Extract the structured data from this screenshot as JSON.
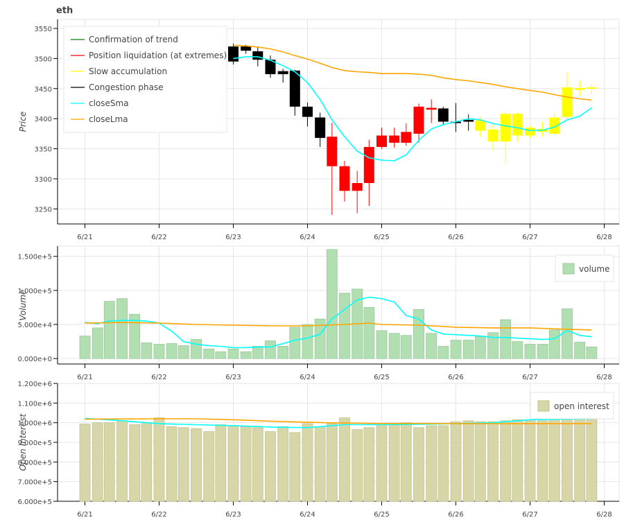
{
  "chart_data": [
    {
      "panel": "price",
      "type": "candlestick",
      "title": "eth",
      "ylabel": "Price",
      "ylim": [
        3225,
        3565
      ],
      "yticks": [
        3250,
        3300,
        3350,
        3400,
        3450,
        3500,
        3550
      ],
      "xlim": [
        -0.0,
        7.0
      ],
      "xticks": [
        0,
        1,
        2,
        3,
        4,
        5,
        6,
        7
      ],
      "xtick_labels": [
        "6/21",
        "6/22",
        "6/23",
        "6/24",
        "6/25",
        "6/26",
        "6/27",
        "6/28"
      ],
      "legend": {
        "position": "top-left",
        "entries": [
          {
            "label": "Confirmation of trend",
            "color": "#008000"
          },
          {
            "label": "Position liquidation (at extremes)",
            "color": "#ff0000"
          },
          {
            "label": "Slow accumulation",
            "color": "#ffff00"
          },
          {
            "label": "Congestion phase",
            "color": "#000000"
          },
          {
            "label": "closeSma",
            "color": "#00ffff"
          },
          {
            "label": "closeLma",
            "color": "#ffa500"
          }
        ]
      },
      "candles": [
        {
          "t": 2.0,
          "o": 3495,
          "h": 3525,
          "l": 3490,
          "c": 3520,
          "phase": "Congestion phase"
        },
        {
          "t": 2.17,
          "o": 3520,
          "h": 3523,
          "l": 3508,
          "c": 3513,
          "phase": "Congestion phase"
        },
        {
          "t": 2.33,
          "o": 3512,
          "h": 3520,
          "l": 3487,
          "c": 3498,
          "phase": "Congestion phase"
        },
        {
          "t": 2.5,
          "o": 3498,
          "h": 3505,
          "l": 3468,
          "c": 3474,
          "phase": "Congestion phase"
        },
        {
          "t": 2.67,
          "o": 3479,
          "h": 3483,
          "l": 3460,
          "c": 3474,
          "phase": "Congestion phase"
        },
        {
          "t": 2.83,
          "o": 3480,
          "h": 3481,
          "l": 3405,
          "c": 3420,
          "phase": "Congestion phase"
        },
        {
          "t": 3.0,
          "o": 3420,
          "h": 3427,
          "l": 3387,
          "c": 3403,
          "phase": "Congestion phase"
        },
        {
          "t": 3.17,
          "o": 3402,
          "h": 3410,
          "l": 3353,
          "c": 3368,
          "phase": "Congestion phase"
        },
        {
          "t": 3.33,
          "o": 3370,
          "h": 3393,
          "l": 3240,
          "c": 3321,
          "phase": "Position liquidation (at extremes)"
        },
        {
          "t": 3.5,
          "o": 3321,
          "h": 3330,
          "l": 3262,
          "c": 3280,
          "phase": "Position liquidation (at extremes)"
        },
        {
          "t": 3.67,
          "o": 3280,
          "h": 3313,
          "l": 3243,
          "c": 3293,
          "phase": "Position liquidation (at extremes)"
        },
        {
          "t": 3.83,
          "o": 3293,
          "h": 3365,
          "l": 3255,
          "c": 3353,
          "phase": "Position liquidation (at extremes)"
        },
        {
          "t": 4.0,
          "o": 3353,
          "h": 3385,
          "l": 3350,
          "c": 3372,
          "phase": "Position liquidation (at extremes)"
        },
        {
          "t": 4.17,
          "o": 3360,
          "h": 3385,
          "l": 3352,
          "c": 3372,
          "phase": "Position liquidation (at extremes)"
        },
        {
          "t": 4.33,
          "o": 3360,
          "h": 3392,
          "l": 3355,
          "c": 3378,
          "phase": "Position liquidation (at extremes)"
        },
        {
          "t": 4.5,
          "o": 3375,
          "h": 3425,
          "l": 3360,
          "c": 3420,
          "phase": "Position liquidation (at extremes)"
        },
        {
          "t": 4.67,
          "o": 3418,
          "h": 3432,
          "l": 3393,
          "c": 3415,
          "phase": "Position liquidation (at extremes)"
        },
        {
          "t": 4.83,
          "o": 3417,
          "h": 3420,
          "l": 3390,
          "c": 3395,
          "phase": "Congestion phase"
        },
        {
          "t": 5.0,
          "o": 3395,
          "h": 3426,
          "l": 3378,
          "c": 3395,
          "phase": "Congestion phase"
        },
        {
          "t": 5.17,
          "o": 3395,
          "h": 3407,
          "l": 3380,
          "c": 3398,
          "phase": "Congestion phase"
        },
        {
          "t": 5.33,
          "o": 3397,
          "h": 3402,
          "l": 3370,
          "c": 3380,
          "phase": "Slow accumulation"
        },
        {
          "t": 5.5,
          "o": 3382,
          "h": 3392,
          "l": 3347,
          "c": 3362,
          "phase": "Slow accumulation"
        },
        {
          "t": 5.67,
          "o": 3362,
          "h": 3410,
          "l": 3326,
          "c": 3408,
          "phase": "Slow accumulation"
        },
        {
          "t": 5.83,
          "o": 3372,
          "h": 3410,
          "l": 3362,
          "c": 3408,
          "phase": "Slow accumulation"
        },
        {
          "t": 6.0,
          "o": 3385,
          "h": 3388,
          "l": 3368,
          "c": 3372,
          "phase": "Slow accumulation"
        },
        {
          "t": 6.17,
          "o": 3378,
          "h": 3395,
          "l": 3370,
          "c": 3383,
          "phase": "Slow accumulation"
        },
        {
          "t": 6.33,
          "o": 3375,
          "h": 3410,
          "l": 3372,
          "c": 3402,
          "phase": "Slow accumulation"
        },
        {
          "t": 6.5,
          "o": 3403,
          "h": 3478,
          "l": 3400,
          "c": 3452,
          "phase": "Slow accumulation"
        },
        {
          "t": 6.67,
          "o": 3448,
          "h": 3463,
          "l": 3438,
          "c": 3451,
          "phase": "Slow accumulation"
        },
        {
          "t": 6.83,
          "o": 3451,
          "h": 3457,
          "l": 3441,
          "c": 3452,
          "phase": "Slow accumulation"
        }
      ],
      "series": [
        {
          "name": "closeSma",
          "color": "#00ffff",
          "x": [
            2.0,
            2.17,
            2.33,
            2.5,
            2.67,
            2.83,
            3.0,
            3.17,
            3.33,
            3.5,
            3.67,
            3.83,
            4.0,
            4.17,
            4.33,
            4.5,
            4.67,
            4.83,
            5.0,
            5.17,
            5.33,
            5.5,
            5.67,
            5.83,
            6.0,
            6.17,
            6.33,
            6.5,
            6.67,
            6.83
          ],
          "y": [
            3500,
            3503,
            3503,
            3497,
            3488,
            3478,
            3460,
            3432,
            3398,
            3370,
            3346,
            3335,
            3331,
            3330,
            3340,
            3364,
            3383,
            3390,
            3395,
            3400,
            3398,
            3392,
            3388,
            3385,
            3380,
            3381,
            3386,
            3398,
            3404,
            3418
          ]
        },
        {
          "name": "closeLma",
          "color": "#ffa500",
          "x": [
            2.0,
            2.17,
            2.33,
            2.5,
            2.67,
            2.83,
            3.0,
            3.17,
            3.33,
            3.5,
            3.67,
            3.83,
            4.0,
            4.17,
            4.33,
            4.5,
            4.67,
            4.83,
            5.0,
            5.17,
            5.33,
            5.5,
            5.67,
            5.83,
            6.0,
            6.17,
            6.33,
            6.5,
            6.67,
            6.83
          ],
          "y": [
            3522,
            3521,
            3519,
            3516,
            3511,
            3505,
            3499,
            3492,
            3485,
            3480,
            3478,
            3477,
            3475,
            3475,
            3475,
            3474,
            3472,
            3468,
            3465,
            3463,
            3460,
            3457,
            3453,
            3450,
            3447,
            3444,
            3440,
            3436,
            3433,
            3431
          ]
        }
      ]
    },
    {
      "panel": "volume",
      "type": "bar",
      "ylabel": "Volume",
      "ylim": [
        -8000,
        165000
      ],
      "yticks": [
        0,
        50000,
        100000,
        150000
      ],
      "ytick_labels": [
        "0.000e+0",
        "5.000e+4",
        "1.000e+5",
        "1.500e+5"
      ],
      "xlim": [
        -0.0,
        7.0
      ],
      "xticks": [
        0,
        1,
        2,
        3,
        4,
        5,
        6,
        7
      ],
      "xtick_labels": [
        "6/21",
        "6/22",
        "6/23",
        "6/24",
        "6/25",
        "6/26",
        "6/27",
        "6/28"
      ],
      "legend": {
        "position": "top-right",
        "entries": [
          {
            "label": "volume",
            "color": "#b2dfb2"
          }
        ]
      },
      "bar_color": "#b2dfb2",
      "x": [
        0.0,
        0.17,
        0.33,
        0.5,
        0.67,
        0.83,
        1.0,
        1.17,
        1.33,
        1.5,
        1.67,
        1.83,
        2.0,
        2.17,
        2.33,
        2.5,
        2.67,
        2.83,
        3.0,
        3.17,
        3.33,
        3.5,
        3.67,
        3.83,
        4.0,
        4.17,
        4.33,
        4.5,
        4.67,
        4.83,
        5.0,
        5.17,
        5.33,
        5.5,
        5.67,
        5.83,
        6.0,
        6.17,
        6.33,
        6.5,
        6.67,
        6.83
      ],
      "values": [
        33000,
        45000,
        84000,
        88000,
        65000,
        23000,
        21000,
        22000,
        19000,
        28000,
        14000,
        10000,
        14000,
        10000,
        18000,
        26000,
        18000,
        46000,
        50000,
        58000,
        160000,
        96000,
        102000,
        75000,
        41000,
        37000,
        34000,
        72000,
        37000,
        18000,
        27000,
        27000,
        32000,
        38000,
        57000,
        25000,
        21000,
        21000,
        42000,
        73000,
        24000,
        17000
      ],
      "series": [
        {
          "name": "closeSma",
          "color": "#00ffff",
          "x": [
            0.0,
            0.17,
            0.33,
            0.5,
            0.67,
            0.83,
            1.0,
            1.17,
            1.33,
            1.5,
            1.67,
            1.83,
            2.0,
            2.17,
            2.33,
            2.5,
            2.67,
            2.83,
            3.0,
            3.17,
            3.33,
            3.5,
            3.67,
            3.83,
            4.0,
            4.17,
            4.33,
            4.5,
            4.67,
            4.83,
            5.0,
            5.17,
            5.33,
            5.5,
            5.67,
            5.83,
            6.0,
            6.17,
            6.33,
            6.5,
            6.67,
            6.83
          ],
          "y": [
            53000,
            51000,
            55000,
            56000,
            56000,
            55000,
            52000,
            40000,
            25000,
            21000,
            19000,
            18000,
            16000,
            16000,
            17000,
            17000,
            22000,
            27000,
            30000,
            36000,
            58000,
            72000,
            86000,
            90000,
            88000,
            83000,
            63000,
            58000,
            42000,
            36000,
            35000,
            34000,
            33000,
            31000,
            31000,
            30000,
            29000,
            28000,
            29000,
            41000,
            34000,
            32000
          ]
        },
        {
          "name": "closeLma",
          "color": "#ffa500",
          "x": [
            0.0,
            0.5,
            1.0,
            1.5,
            2.0,
            2.5,
            3.0,
            3.5,
            3.83,
            4.0,
            4.5,
            5.0,
            5.5,
            6.0,
            6.5,
            6.83
          ],
          "y": [
            52000,
            53000,
            52000,
            50000,
            49000,
            48000,
            48000,
            50000,
            52000,
            50000,
            49000,
            46000,
            45000,
            45000,
            43000,
            42000
          ]
        }
      ]
    },
    {
      "panel": "open_interest",
      "type": "bar",
      "ylabel": "Open Interest",
      "ylim": [
        600000,
        1200000
      ],
      "yticks": [
        600000,
        700000,
        800000,
        900000,
        1000000,
        1100000,
        1200000
      ],
      "ytick_labels": [
        "6.000e+5",
        "7.000e+5",
        "8.000e+5",
        "9.000e+5",
        "1.000e+6",
        "1.100e+6",
        "1.200e+6"
      ],
      "xlim": [
        -0.0,
        7.0
      ],
      "xticks": [
        0,
        1,
        2,
        3,
        4,
        5,
        6,
        7
      ],
      "xtick_labels": [
        "6/21",
        "6/22",
        "6/23",
        "6/24",
        "6/25",
        "6/26",
        "6/27",
        "6/28"
      ],
      "legend": {
        "position": "top-right",
        "entries": [
          {
            "label": "open interest",
            "color": "#d6d6a8"
          }
        ]
      },
      "bar_color": "#d6d6a8",
      "x": [
        0.0,
        0.17,
        0.33,
        0.5,
        0.67,
        0.83,
        1.0,
        1.17,
        1.33,
        1.5,
        1.67,
        1.83,
        2.0,
        2.17,
        2.33,
        2.5,
        2.67,
        2.83,
        3.0,
        3.17,
        3.33,
        3.5,
        3.67,
        3.83,
        4.0,
        4.17,
        4.33,
        4.5,
        4.67,
        4.83,
        5.0,
        5.17,
        5.33,
        5.5,
        5.67,
        5.83,
        6.0,
        6.17,
        6.33,
        6.5,
        6.67,
        6.83
      ],
      "values": [
        993000,
        1000000,
        1000000,
        1010000,
        990000,
        1000000,
        1025000,
        980000,
        975000,
        970000,
        955000,
        990000,
        985000,
        980000,
        975000,
        955000,
        980000,
        950000,
        995000,
        980000,
        995000,
        1025000,
        965000,
        975000,
        990000,
        990000,
        1000000,
        975000,
        985000,
        985000,
        1005000,
        1010000,
        1005000,
        1005000,
        1010000,
        1015000,
        1015000,
        1010000,
        1020000,
        1020000,
        1025000,
        1025000
      ],
      "series": [
        {
          "name": "closeSma",
          "color": "#00ffff",
          "x": [
            0.0,
            0.5,
            1.0,
            1.5,
            2.0,
            2.5,
            3.0,
            3.5,
            4.0,
            4.5,
            5.0,
            5.5,
            6.0,
            6.5,
            6.83
          ],
          "y": [
            1022000,
            1010000,
            995000,
            990000,
            985000,
            978000,
            975000,
            990000,
            990000,
            992000,
            995000,
            1000000,
            1015000,
            1018000,
            1020000
          ]
        },
        {
          "name": "closeLma",
          "color": "#ffa500",
          "x": [
            0.0,
            0.5,
            1.0,
            1.5,
            2.0,
            2.5,
            3.0,
            3.5,
            4.0,
            4.5,
            5.0,
            5.5,
            6.0,
            6.5,
            6.83
          ],
          "y": [
            1018000,
            1019000,
            1020000,
            1020000,
            1015000,
            1008000,
            1002000,
            998000,
            996000,
            996000,
            995000,
            995000,
            995000,
            995000,
            995000
          ]
        }
      ]
    }
  ]
}
